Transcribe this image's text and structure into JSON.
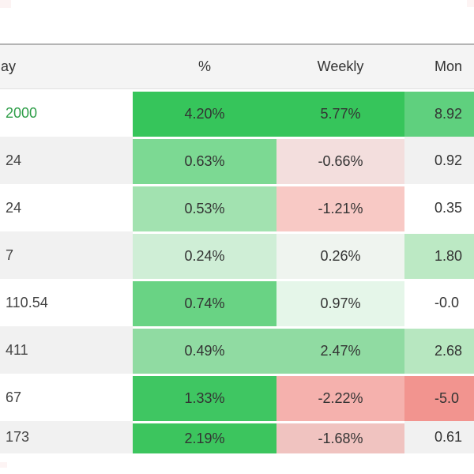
{
  "page": {
    "background": "#ffffff",
    "corner_fragment_color": "#fcf3f3"
  },
  "header": {
    "day": "ay",
    "pct": "%",
    "weekly": "Weekly",
    "monthly": "Mon"
  },
  "rows": [
    {
      "label": "2000",
      "label_color": "#2e9e48",
      "pct": {
        "text": "4.20%",
        "bg": "#36c55b"
      },
      "weekly": {
        "text": "5.77%",
        "bg": "#36c55b"
      },
      "monthly": {
        "text": "8.92",
        "bg": "#5fd07e"
      }
    },
    {
      "label": "24",
      "pct": {
        "text": "0.63%",
        "bg": "#7cd993"
      },
      "weekly": {
        "text": "-0.66%",
        "bg": "#f3dedd"
      },
      "monthly": {
        "text": "0.92",
        "bg": null
      }
    },
    {
      "label": "24",
      "pct": {
        "text": "0.53%",
        "bg": "#a2e2b0"
      },
      "weekly": {
        "text": "-1.21%",
        "bg": "#f8c9c5"
      },
      "monthly": {
        "text": "0.35",
        "bg": null
      }
    },
    {
      "label": "7",
      "pct": {
        "text": "0.24%",
        "bg": "#cfeed6"
      },
      "weekly": {
        "text": "0.26%",
        "bg": "#eff4ef"
      },
      "monthly": {
        "text": "1.80",
        "bg": "#bce9c4"
      }
    },
    {
      "label": "110.54",
      "pct": {
        "text": "0.74%",
        "bg": "#69d384"
      },
      "weekly": {
        "text": "0.97%",
        "bg": "#e5f6e9"
      },
      "monthly": {
        "text": "-0.0",
        "bg": null
      }
    },
    {
      "label": "411",
      "pct": {
        "text": "0.49%",
        "bg": "#90dba2"
      },
      "weekly": {
        "text": "2.47%",
        "bg": "#90dba2"
      },
      "monthly": {
        "text": "2.68",
        "bg": "#b7e7c0"
      }
    },
    {
      "label": "67",
      "pct": {
        "text": "1.33%",
        "bg": "#3fc662"
      },
      "weekly": {
        "text": "-2.22%",
        "bg": "#f5b1ad"
      },
      "monthly": {
        "text": "-5.0",
        "bg": "#f2948f"
      }
    },
    {
      "label": "173",
      "pct": {
        "text": "2.19%",
        "bg": "#3cc55e"
      },
      "weekly": {
        "text": "-1.68%",
        "bg": "#f0c3c0"
      },
      "monthly": {
        "text": "0.61",
        "bg": null
      }
    }
  ],
  "colors": {
    "stripe": "#f1f1f1",
    "header_bg": "#f4f4f4",
    "header_top_border": "#b4b4b4",
    "cell_text": "#333333",
    "label_default": "#444444",
    "label_positive": "#2e9e48",
    "strong_green": "#36c55b",
    "strong_pink": "#f2948f"
  }
}
